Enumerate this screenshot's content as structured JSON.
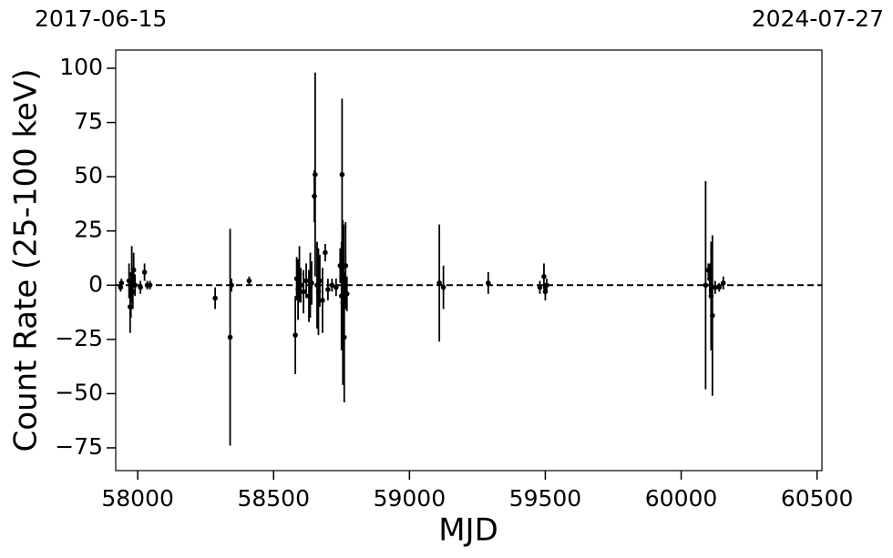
{
  "chart_data": {
    "type": "errorbar",
    "annotations": [
      "2017-06-15",
      "2024-07-27"
    ],
    "xlabel": "MJD",
    "ylabel": "Count Rate (25-100 keV)",
    "xlim": [
      57919,
      60518
    ],
    "ylim": [
      -85.5,
      108.4
    ],
    "xticks": [
      58000,
      58500,
      59000,
      59500,
      60000,
      60500
    ],
    "yticks": [
      {
        "value": -75,
        "label": "−75"
      },
      {
        "value": -50,
        "label": "−50"
      },
      {
        "value": -25,
        "label": "−25"
      },
      0,
      25,
      50,
      75,
      100
    ],
    "hline": 0,
    "color": "#000000",
    "x": [
      57937,
      57940,
      57968,
      57972,
      57975,
      57978,
      57982,
      57985,
      57990,
      58010,
      58025,
      58035,
      58045,
      58285,
      58340,
      58345,
      58410,
      58580,
      58585,
      58590,
      58595,
      58600,
      58610,
      58620,
      58630,
      58635,
      58640,
      58650,
      58653,
      58660,
      58665,
      58670,
      58680,
      58690,
      58700,
      58715,
      58730,
      58745,
      58750,
      58752,
      58755,
      58758,
      58760,
      58765,
      58770,
      59110,
      59125,
      59290,
      59480,
      59495,
      59500,
      59505,
      60090,
      60100,
      60105,
      60110,
      60115,
      60125,
      60140,
      60155
    ],
    "values": [
      -1,
      1,
      2,
      -10,
      -5,
      5,
      -3,
      7,
      0,
      -1,
      6,
      0,
      0,
      -6,
      -24,
      0,
      2,
      -23,
      3,
      -2,
      5,
      0,
      -3,
      2,
      -5,
      0,
      1,
      41,
      51,
      0,
      -3,
      2,
      -7,
      15,
      -2,
      0,
      -1,
      9,
      -5,
      51,
      -8,
      0,
      -24,
      9,
      -4,
      1,
      -1,
      1,
      -1,
      4,
      -3,
      0,
      0,
      7,
      3,
      -5,
      -14,
      -1,
      -1,
      1
    ],
    "errors": [
      2,
      2,
      8,
      12,
      10,
      13,
      8,
      8,
      5,
      3,
      4,
      2,
      2,
      5,
      50,
      3,
      2,
      18,
      10,
      14,
      13,
      8,
      10,
      8,
      12,
      15,
      10,
      12,
      47,
      20,
      20,
      12,
      15,
      4,
      5,
      3,
      4,
      8,
      25,
      35,
      38,
      28,
      30,
      20,
      8,
      27,
      10,
      5,
      3,
      6,
      4,
      3,
      48,
      3,
      7,
      25,
      37,
      3,
      2,
      3
    ]
  }
}
